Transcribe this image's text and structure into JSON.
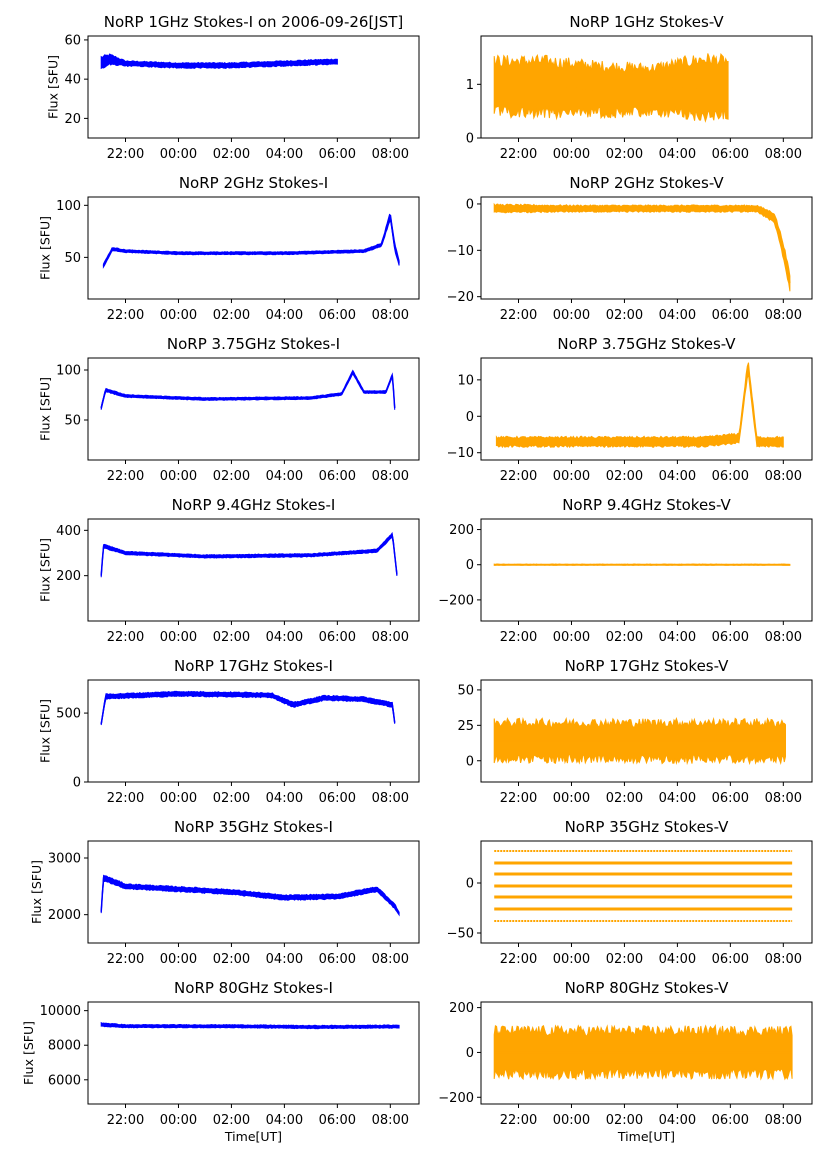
{
  "figure": {
    "xlabel": "Time[UT]",
    "ylabel": "Flux [SFU]",
    "x_ticks": [
      "22:00",
      "00:00",
      "02:00",
      "04:00",
      "06:00",
      "08:00"
    ],
    "x_range": [
      "2006-09-25 20:35",
      "2006-09-26 09:05"
    ],
    "colors": {
      "stokes_i": "#0000ff",
      "stokes_v": "#ffa500"
    }
  },
  "chart_data": [
    {
      "id": "i1",
      "type": "line",
      "title": "NoRP 1GHz Stokes-I on 2006-09-26[JST]",
      "ylabel": "Flux [SFU]",
      "xlabel": "",
      "color": "#0000ff",
      "ylim": [
        10,
        62
      ],
      "yticks": [
        20,
        40,
        60
      ],
      "x": [
        "2006-09-25 21:05",
        "2006-09-25 21:25",
        "2006-09-25 22:00",
        "2006-09-26 00:00",
        "2006-09-26 02:00",
        "2006-09-26 04:00",
        "2006-09-26 06:00"
      ],
      "y": [
        48,
        50,
        48,
        47,
        47,
        48,
        49
      ],
      "spread": [
        4,
        3,
        1.5,
        1.5,
        1.5,
        1.5,
        1.5
      ]
    },
    {
      "id": "v1",
      "type": "line",
      "title": "NoRP 1GHz Stokes-V",
      "ylabel": "",
      "xlabel": "",
      "color": "#ffa500",
      "ylim": [
        0,
        1.9
      ],
      "yticks": [
        0,
        1
      ],
      "x": [
        "2006-09-25 21:05",
        "2006-09-25 23:00",
        "2006-09-26 01:00",
        "2006-09-26 03:00",
        "2006-09-26 05:00",
        "2006-09-26 05:55"
      ],
      "y": [
        0.95,
        0.95,
        0.9,
        0.9,
        0.95,
        0.95
      ],
      "spread": [
        0.6,
        0.6,
        0.55,
        0.5,
        0.65,
        0.6
      ]
    },
    {
      "id": "i2",
      "type": "line",
      "title": "NoRP 2GHz Stokes-I",
      "ylabel": "Flux [SFU]",
      "xlabel": "",
      "color": "#0000ff",
      "ylim": [
        10,
        108
      ],
      "yticks": [
        50,
        100
      ],
      "x": [
        "2006-09-25 21:10",
        "2006-09-25 21:30",
        "2006-09-25 22:00",
        "2006-09-26 00:00",
        "2006-09-26 04:00",
        "2006-09-26 07:00",
        "2006-09-26 07:40",
        "2006-09-26 08:00",
        "2006-09-26 08:10",
        "2006-09-26 08:20"
      ],
      "y": [
        42,
        58,
        56,
        54,
        54,
        56,
        62,
        90,
        60,
        45
      ],
      "spread": [
        2,
        2,
        1.5,
        1.5,
        1.5,
        1.5,
        2,
        4,
        4,
        3
      ]
    },
    {
      "id": "v2",
      "type": "line",
      "title": "NoRP 2GHz Stokes-V",
      "ylabel": "",
      "xlabel": "",
      "color": "#ffa500",
      "ylim": [
        -20.5,
        1.5
      ],
      "yticks": [
        0,
        -10,
        -20
      ],
      "x": [
        "2006-09-25 21:05",
        "2006-09-26 00:00",
        "2006-09-26 04:00",
        "2006-09-26 07:00",
        "2006-09-26 07:40",
        "2006-09-26 08:00",
        "2006-09-26 08:15"
      ],
      "y": [
        -1,
        -1,
        -1,
        -1,
        -3,
        -10,
        -17
      ],
      "spread": [
        1,
        0.8,
        0.8,
        0.8,
        1.2,
        2,
        2
      ]
    },
    {
      "id": "i3",
      "type": "line",
      "title": "NoRP 3.75GHz Stokes-I",
      "ylabel": "Flux [SFU]",
      "xlabel": "",
      "color": "#0000ff",
      "ylim": [
        10,
        112
      ],
      "yticks": [
        50,
        100
      ],
      "x": [
        "2006-09-25 21:05",
        "2006-09-25 21:15",
        "2006-09-25 22:00",
        "2006-09-26 01:00",
        "2006-09-26 05:00",
        "2006-09-26 06:10",
        "2006-09-26 06:35",
        "2006-09-26 07:00",
        "2006-09-26 07:50",
        "2006-09-26 08:05",
        "2006-09-26 08:10"
      ],
      "y": [
        62,
        80,
        74,
        71,
        72,
        76,
        98,
        78,
        78,
        95,
        62
      ],
      "spread": [
        2,
        2,
        1.5,
        1.5,
        1.5,
        1.5,
        2,
        1.5,
        1.5,
        2,
        2
      ]
    },
    {
      "id": "v3",
      "type": "line",
      "title": "NoRP 3.75GHz Stokes-V",
      "ylabel": "",
      "xlabel": "",
      "color": "#ffa500",
      "ylim": [
        -12,
        16
      ],
      "yticks": [
        10,
        0,
        -10
      ],
      "x": [
        "2006-09-25 21:10",
        "2006-09-26 01:00",
        "2006-09-26 05:00",
        "2006-09-26 06:20",
        "2006-09-26 06:40",
        "2006-09-26 07:00",
        "2006-09-26 08:00"
      ],
      "y": [
        -7,
        -7,
        -7,
        -6,
        14,
        -7,
        -7
      ],
      "spread": [
        1.5,
        1.5,
        1.5,
        1.5,
        2,
        1.5,
        1.5
      ]
    },
    {
      "id": "i4",
      "type": "line",
      "title": "NoRP 9.4GHz Stokes-I",
      "ylabel": "Flux [SFU]",
      "xlabel": "",
      "color": "#0000ff",
      "ylim": [
        0,
        450
      ],
      "yticks": [
        200,
        400
      ],
      "x": [
        "2006-09-25 21:05",
        "2006-09-25 21:10",
        "2006-09-25 22:00",
        "2006-09-26 01:00",
        "2006-09-26 05:00",
        "2006-09-26 07:30",
        "2006-09-26 08:05",
        "2006-09-26 08:15"
      ],
      "y": [
        200,
        330,
        300,
        285,
        290,
        310,
        380,
        205
      ],
      "spread": [
        8,
        10,
        8,
        8,
        8,
        8,
        10,
        8
      ]
    },
    {
      "id": "v4",
      "type": "line",
      "title": "NoRP 9.4GHz Stokes-V",
      "ylabel": "",
      "xlabel": "",
      "color": "#ffa500",
      "ylim": [
        -320,
        260
      ],
      "yticks": [
        200,
        0,
        -200
      ],
      "x": [
        "2006-09-25 21:05",
        "2006-09-26 01:00",
        "2006-09-26 05:00",
        "2006-09-26 08:15"
      ],
      "y": [
        0,
        0,
        0,
        0
      ],
      "spread": [
        4,
        4,
        4,
        4
      ]
    },
    {
      "id": "i5",
      "type": "line",
      "title": "NoRP 17GHz Stokes-I",
      "ylabel": "Flux [SFU]",
      "xlabel": "",
      "color": "#0000ff",
      "ylim": [
        0,
        740
      ],
      "yticks": [
        0,
        500
      ],
      "x": [
        "2006-09-25 21:05",
        "2006-09-25 21:15",
        "2006-09-26 00:00",
        "2006-09-26 03:30",
        "2006-09-26 04:20",
        "2006-09-26 05:30",
        "2006-09-26 07:00",
        "2006-09-26 08:05",
        "2006-09-26 08:10"
      ],
      "y": [
        420,
        620,
        640,
        630,
        560,
        610,
        600,
        560,
        430
      ],
      "spread": [
        10,
        20,
        20,
        20,
        20,
        20,
        20,
        20,
        10
      ]
    },
    {
      "id": "v5",
      "type": "line",
      "title": "NoRP 17GHz Stokes-V",
      "ylabel": "",
      "xlabel": "",
      "color": "#ffa500",
      "ylim": [
        -15,
        57
      ],
      "yticks": [
        50,
        25,
        0
      ],
      "x": [
        "2006-09-25 21:05",
        "2006-09-26 01:00",
        "2006-09-26 05:00",
        "2006-09-26 08:05"
      ],
      "y": [
        14,
        14,
        14,
        14
      ],
      "spread": [
        16,
        16,
        16,
        16
      ]
    },
    {
      "id": "i6",
      "type": "line",
      "title": "NoRP 35GHz Stokes-I",
      "ylabel": "Flux [SFU]",
      "xlabel": "",
      "color": "#0000ff",
      "ylim": [
        1500,
        3300
      ],
      "yticks": [
        2000,
        3000
      ],
      "x": [
        "2006-09-25 21:05",
        "2006-09-25 21:10",
        "2006-09-25 22:00",
        "2006-09-26 00:00",
        "2006-09-26 02:00",
        "2006-09-26 04:00",
        "2006-09-26 06:00",
        "2006-09-26 07:30",
        "2006-09-26 08:10",
        "2006-09-26 08:20"
      ],
      "y": [
        2050,
        2650,
        2500,
        2450,
        2400,
        2300,
        2320,
        2450,
        2150,
        2020
      ],
      "spread": [
        30,
        60,
        50,
        50,
        50,
        50,
        50,
        50,
        50,
        30
      ]
    },
    {
      "id": "v6",
      "type": "scatter",
      "title": "NoRP 35GHz Stokes-V",
      "ylabel": "",
      "xlabel": "",
      "color": "#ffa500",
      "ylim": [
        -60,
        42
      ],
      "yticks": [
        0,
        -50
      ],
      "x": [
        "2006-09-25 21:05",
        "2006-09-26 08:20"
      ],
      "levels": [
        32,
        20,
        9,
        -3,
        -14,
        -26,
        -38
      ]
    },
    {
      "id": "i7",
      "type": "line",
      "title": "NoRP 80GHz Stokes-I",
      "ylabel": "Flux [SFU]",
      "xlabel": "Time[UT]",
      "color": "#0000ff",
      "ylim": [
        4600,
        10500
      ],
      "yticks": [
        6000,
        8000,
        10000
      ],
      "x": [
        "2006-09-25 21:05",
        "2006-09-25 22:00",
        "2006-09-26 02:00",
        "2006-09-26 05:00",
        "2006-09-26 08:20"
      ],
      "y": [
        9200,
        9100,
        9100,
        9050,
        9080
      ],
      "spread": [
        120,
        100,
        100,
        100,
        100
      ]
    },
    {
      "id": "v7",
      "type": "line",
      "title": "NoRP 80GHz Stokes-V",
      "ylabel": "",
      "xlabel": "Time[UT]",
      "color": "#ffa500",
      "ylim": [
        -230,
        225
      ],
      "yticks": [
        200,
        0,
        -200
      ],
      "x": [
        "2006-09-25 21:05",
        "2006-09-26 01:00",
        "2006-09-26 05:00",
        "2006-09-26 08:20"
      ],
      "y": [
        0,
        0,
        0,
        0
      ],
      "spread": [
        120,
        120,
        120,
        120
      ]
    }
  ]
}
